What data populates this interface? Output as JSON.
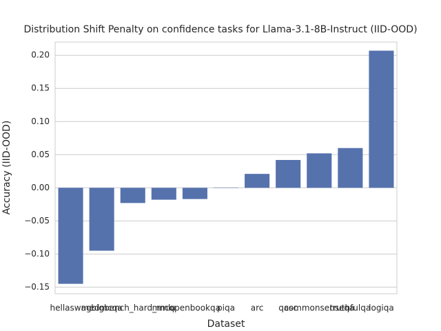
{
  "chart_data": {
    "type": "bar",
    "title": "Distribution Shift Penalty on confidence tasks for Llama-3.1-8B-Instruct (IID-OOD)",
    "x_label": "Dataset",
    "y_label": "Accuracy (IID-OOD)",
    "categories": [
      "hellaswag",
      "medmcqa",
      "bigbench_hard_mcq",
      "mmlu",
      "openbookqa",
      "piqa",
      "arc",
      "qasc",
      "commonsenseqa",
      "truthfulqa",
      "logiqa"
    ],
    "values": [
      -0.145,
      -0.095,
      -0.023,
      -0.018,
      -0.017,
      0.0005,
      0.021,
      0.042,
      0.052,
      0.06,
      0.207
    ],
    "color": "#5572ad",
    "ylim": [
      -0.16,
      0.22
    ],
    "yticks": [
      {
        "value": -0.15,
        "label": "−0.15"
      },
      {
        "value": -0.1,
        "label": "−0.10"
      },
      {
        "value": -0.05,
        "label": "−0.05"
      },
      {
        "value": 0,
        "label": "0.00"
      },
      {
        "value": 0.05,
        "label": "0.05"
      },
      {
        "value": 0.1,
        "label": "0.10"
      },
      {
        "value": 0.15,
        "label": "0.15"
      },
      {
        "value": 0.2,
        "label": "0.20"
      }
    ],
    "grid": true
  }
}
